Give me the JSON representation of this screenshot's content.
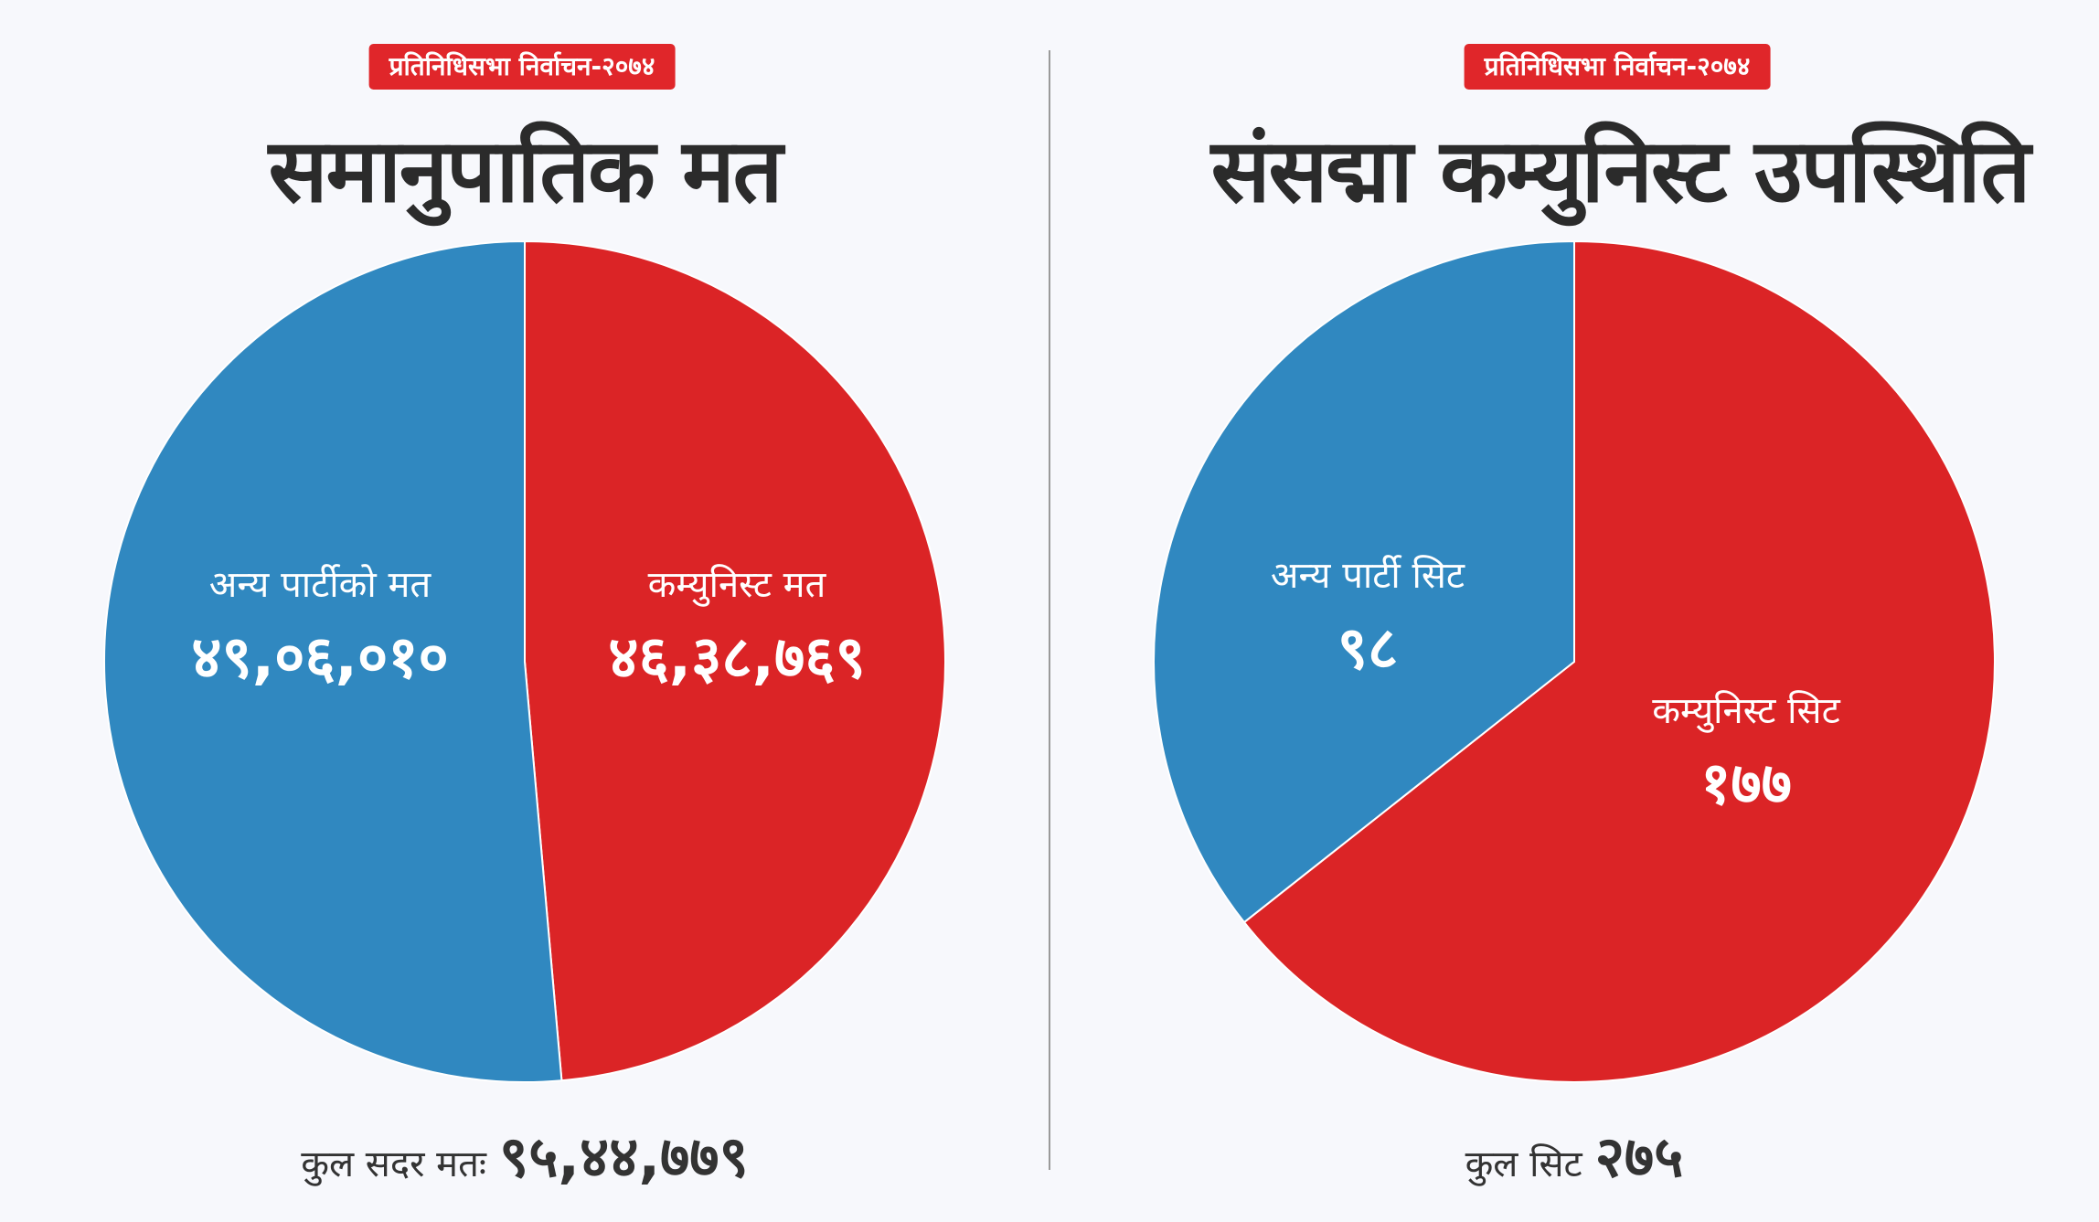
{
  "colors": {
    "blue": "#3088c0",
    "red": "#db2426",
    "badge": "#e0262a",
    "text": "#2b2b2b"
  },
  "chart_data": [
    {
      "type": "pie",
      "badge": "प्रतिनिधिसभा निर्वाचन-२०७४",
      "title": "समानुपातिक मत",
      "slices": [
        {
          "label": "कम्युनिस्ट मत",
          "value": 4638769,
          "display": "४६,३८,७६९",
          "color": "#db2426"
        },
        {
          "label": "अन्य पार्टीको मत",
          "value": 4906010,
          "display": "४९,०६,०१०",
          "color": "#3088c0"
        }
      ],
      "total_label": "कुल सदर मतः",
      "total_value": "९५,४४,७७९"
    },
    {
      "type": "pie",
      "badge": "प्रतिनिधिसभा निर्वाचन-२०७४",
      "title": "संसद्मा कम्युनिस्ट उपस्थिति",
      "slices": [
        {
          "label": "कम्युनिस्ट सिट",
          "value": 177,
          "display": "१७७",
          "color": "#db2426"
        },
        {
          "label": "अन्य पार्टी सिट",
          "value": 98,
          "display": "९८",
          "color": "#3088c0"
        }
      ],
      "total_label": "कुल सिट",
      "total_value": "२७५"
    }
  ]
}
